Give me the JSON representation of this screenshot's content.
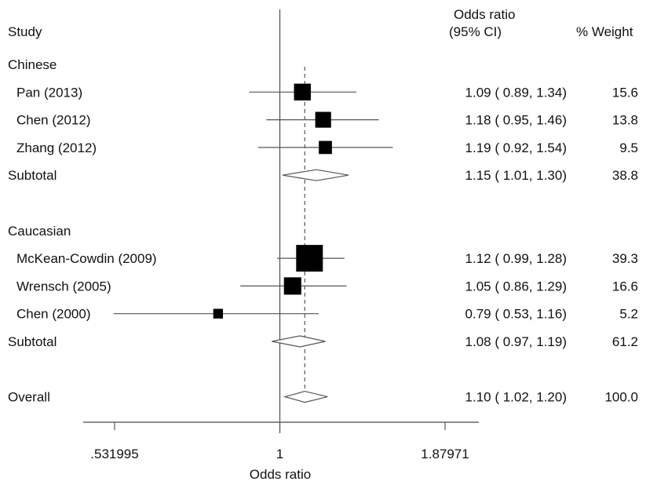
{
  "chart_data": {
    "type": "forest",
    "title": "",
    "xlabel": "Odds ratio",
    "scale": "log",
    "xlim": [
      0.531995,
      1.87971
    ],
    "x_ticks": [
      0.531995,
      1,
      1.87971
    ],
    "x_tick_labels": [
      ".531995",
      "1",
      "1.87971"
    ],
    "null_value": 1,
    "overall_reference_line": 1.1,
    "headers": {
      "study": "Study",
      "or_line1": "Odds ratio",
      "or_line2": "(95% CI)",
      "weight": "% Weight"
    },
    "rows": [
      {
        "kind": "group",
        "label": "Chinese"
      },
      {
        "kind": "study",
        "label": "Pan (2013)",
        "or": 1.09,
        "lo": 0.89,
        "hi": 1.34,
        "ci_text": "1.09 ( 0.89, 1.34)",
        "weight": 15.6,
        "weight_text": "15.6"
      },
      {
        "kind": "study",
        "label": "Chen (2012)",
        "or": 1.18,
        "lo": 0.95,
        "hi": 1.46,
        "ci_text": "1.18 ( 0.95, 1.46)",
        "weight": 13.8,
        "weight_text": "13.8"
      },
      {
        "kind": "study",
        "label": "Zhang (2012)",
        "or": 1.19,
        "lo": 0.92,
        "hi": 1.54,
        "ci_text": "1.19 ( 0.92, 1.54)",
        "weight": 9.5,
        "weight_text": "9.5"
      },
      {
        "kind": "subtotal",
        "label": "Subtotal",
        "or": 1.15,
        "lo": 1.01,
        "hi": 1.3,
        "ci_text": "1.15 ( 1.01, 1.30)",
        "weight": 38.8,
        "weight_text": "38.8"
      },
      {
        "kind": "blank"
      },
      {
        "kind": "group",
        "label": "Caucasian"
      },
      {
        "kind": "study",
        "label": "McKean-Cowdin (2009)",
        "or": 1.12,
        "lo": 0.99,
        "hi": 1.28,
        "ci_text": "1.12 ( 0.99, 1.28)",
        "weight": 39.3,
        "weight_text": "39.3"
      },
      {
        "kind": "study",
        "label": "Wrensch (2005)",
        "or": 1.05,
        "lo": 0.86,
        "hi": 1.29,
        "ci_text": "1.05 ( 0.86, 1.29)",
        "weight": 16.6,
        "weight_text": "16.6"
      },
      {
        "kind": "study",
        "label": "Chen  (2000)",
        "or": 0.79,
        "lo": 0.53,
        "hi": 1.16,
        "ci_text": "0.79 ( 0.53, 1.16)",
        "weight": 5.2,
        "weight_text": "5.2"
      },
      {
        "kind": "subtotal",
        "label": "Subtotal",
        "or": 1.08,
        "lo": 0.97,
        "hi": 1.19,
        "ci_text": "1.08 ( 0.97, 1.19)",
        "weight": 61.2,
        "weight_text": "61.2"
      },
      {
        "kind": "blank"
      },
      {
        "kind": "overall",
        "label": "Overall",
        "or": 1.1,
        "lo": 1.02,
        "hi": 1.2,
        "ci_text": "1.10 ( 1.02, 1.20)",
        "weight": 100.0,
        "weight_text": "100.0"
      }
    ],
    "colors": {
      "marker": "#000000",
      "line": "#555555",
      "text": "#111111"
    }
  }
}
